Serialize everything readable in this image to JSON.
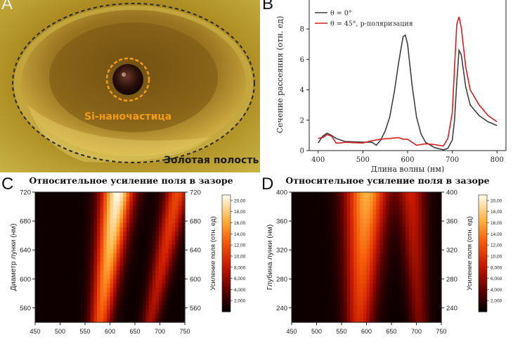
{
  "panels": {
    "a": "A",
    "b": "B",
    "c": "C",
    "d": "D"
  },
  "photo": {
    "particle_label": "Si-наночастица",
    "cavity_label": "Золотая полость"
  },
  "colors": {
    "series_normal": "#404040",
    "series_45": "#d42020",
    "particle_label": "#f39c1a",
    "cavity_label": "#1a1a1a"
  },
  "chart_data": [
    {
      "type": "line",
      "xlabel": "Длина волны (нм)",
      "ylabel": "Сечение рассеяния (отн. ед)",
      "xlim": [
        380,
        820
      ],
      "ylim": [
        0,
        10
      ],
      "xticks": [
        400,
        500,
        600,
        700,
        800
      ],
      "yticks": [
        0,
        2,
        4,
        6,
        8
      ],
      "legend_position": "top-left",
      "series": [
        {
          "name": "θ = 0°",
          "x": [
            400,
            410,
            420,
            430,
            440,
            450,
            460,
            480,
            500,
            520,
            530,
            540,
            550,
            560,
            570,
            580,
            590,
            595,
            600,
            610,
            620,
            630,
            640,
            660,
            680,
            690,
            700,
            705,
            710,
            715,
            720,
            730,
            740,
            760,
            780,
            800
          ],
          "y": [
            0.5,
            0.95,
            1.15,
            1.0,
            0.8,
            0.7,
            0.6,
            0.58,
            0.55,
            0.55,
            0.35,
            0.7,
            1.3,
            2.2,
            3.8,
            5.8,
            7.5,
            7.6,
            7.0,
            4.3,
            2.2,
            1.1,
            0.55,
            0.2,
            0.05,
            0.15,
            0.7,
            2.0,
            4.5,
            6.6,
            6.3,
            4.2,
            3.0,
            2.3,
            1.9,
            1.65
          ]
        },
        {
          "name": "θ = 45°, p-поляризация",
          "x": [
            400,
            410,
            420,
            430,
            440,
            450,
            460,
            480,
            500,
            520,
            540,
            560,
            580,
            590,
            600,
            620,
            640,
            660,
            680,
            690,
            700,
            705,
            710,
            715,
            720,
            730,
            740,
            760,
            780,
            800
          ],
          "y": [
            0.8,
            0.85,
            1.05,
            0.95,
            0.5,
            0.5,
            0.55,
            0.52,
            0.5,
            0.65,
            0.75,
            0.8,
            0.85,
            0.75,
            0.75,
            0.35,
            0.45,
            0.4,
            0.3,
            0.8,
            2.5,
            5.5,
            8.3,
            8.8,
            8.1,
            5.5,
            4.0,
            3.0,
            2.3,
            1.9
          ]
        }
      ]
    },
    {
      "type": "heatmap",
      "title": "Относительное усиление поля в зазоре",
      "xlabel": "",
      "ylabel": "Диаметр лунки (нм)",
      "colorbar_label": "Усиление поля (отн. ед)",
      "xlim": [
        450,
        750
      ],
      "ylim": [
        540,
        720
      ],
      "xticks": [
        450,
        500,
        550,
        600,
        650,
        700,
        750
      ],
      "yticks": [
        560,
        600,
        640,
        680,
        720
      ],
      "zlim": [
        0,
        21
      ],
      "colorbar_ticks": [
        "2,000",
        "4,000",
        "6,000",
        "8,000",
        "10,00",
        "12,00",
        "14,00",
        "16,00",
        "18,00",
        "20,00"
      ],
      "ridges": [
        {
          "x_at_bottom": 580,
          "x_at_top": 615,
          "peak": 20.5,
          "width": 26
        },
        {
          "x_at_bottom": 680,
          "x_at_top": 735,
          "peak": 11,
          "width": 20
        }
      ]
    },
    {
      "type": "heatmap",
      "title": "Относительное усиление поля в зазоре",
      "xlabel": "",
      "ylabel": "Глубина лунки (нм)",
      "colorbar_label": "Усиление поля (отн. ед)",
      "xlim": [
        450,
        750
      ],
      "ylim": [
        220,
        400
      ],
      "xticks": [
        450,
        500,
        550,
        600,
        650,
        700,
        750
      ],
      "yticks": [
        240,
        280,
        320,
        360,
        400
      ],
      "zlim": [
        0,
        21
      ],
      "colorbar_ticks": [
        "2,000",
        "4,000",
        "6,000",
        "8,000",
        "10,00",
        "12,00",
        "14,00",
        "16,00",
        "18,00",
        "20,00"
      ],
      "ridges": [
        {
          "x_at_bottom": 585,
          "x_at_top": 600,
          "peak": 16,
          "width": 34
        },
        {
          "x_at_bottom": 705,
          "x_at_top": 690,
          "peak": 8,
          "width": 22
        }
      ]
    }
  ]
}
